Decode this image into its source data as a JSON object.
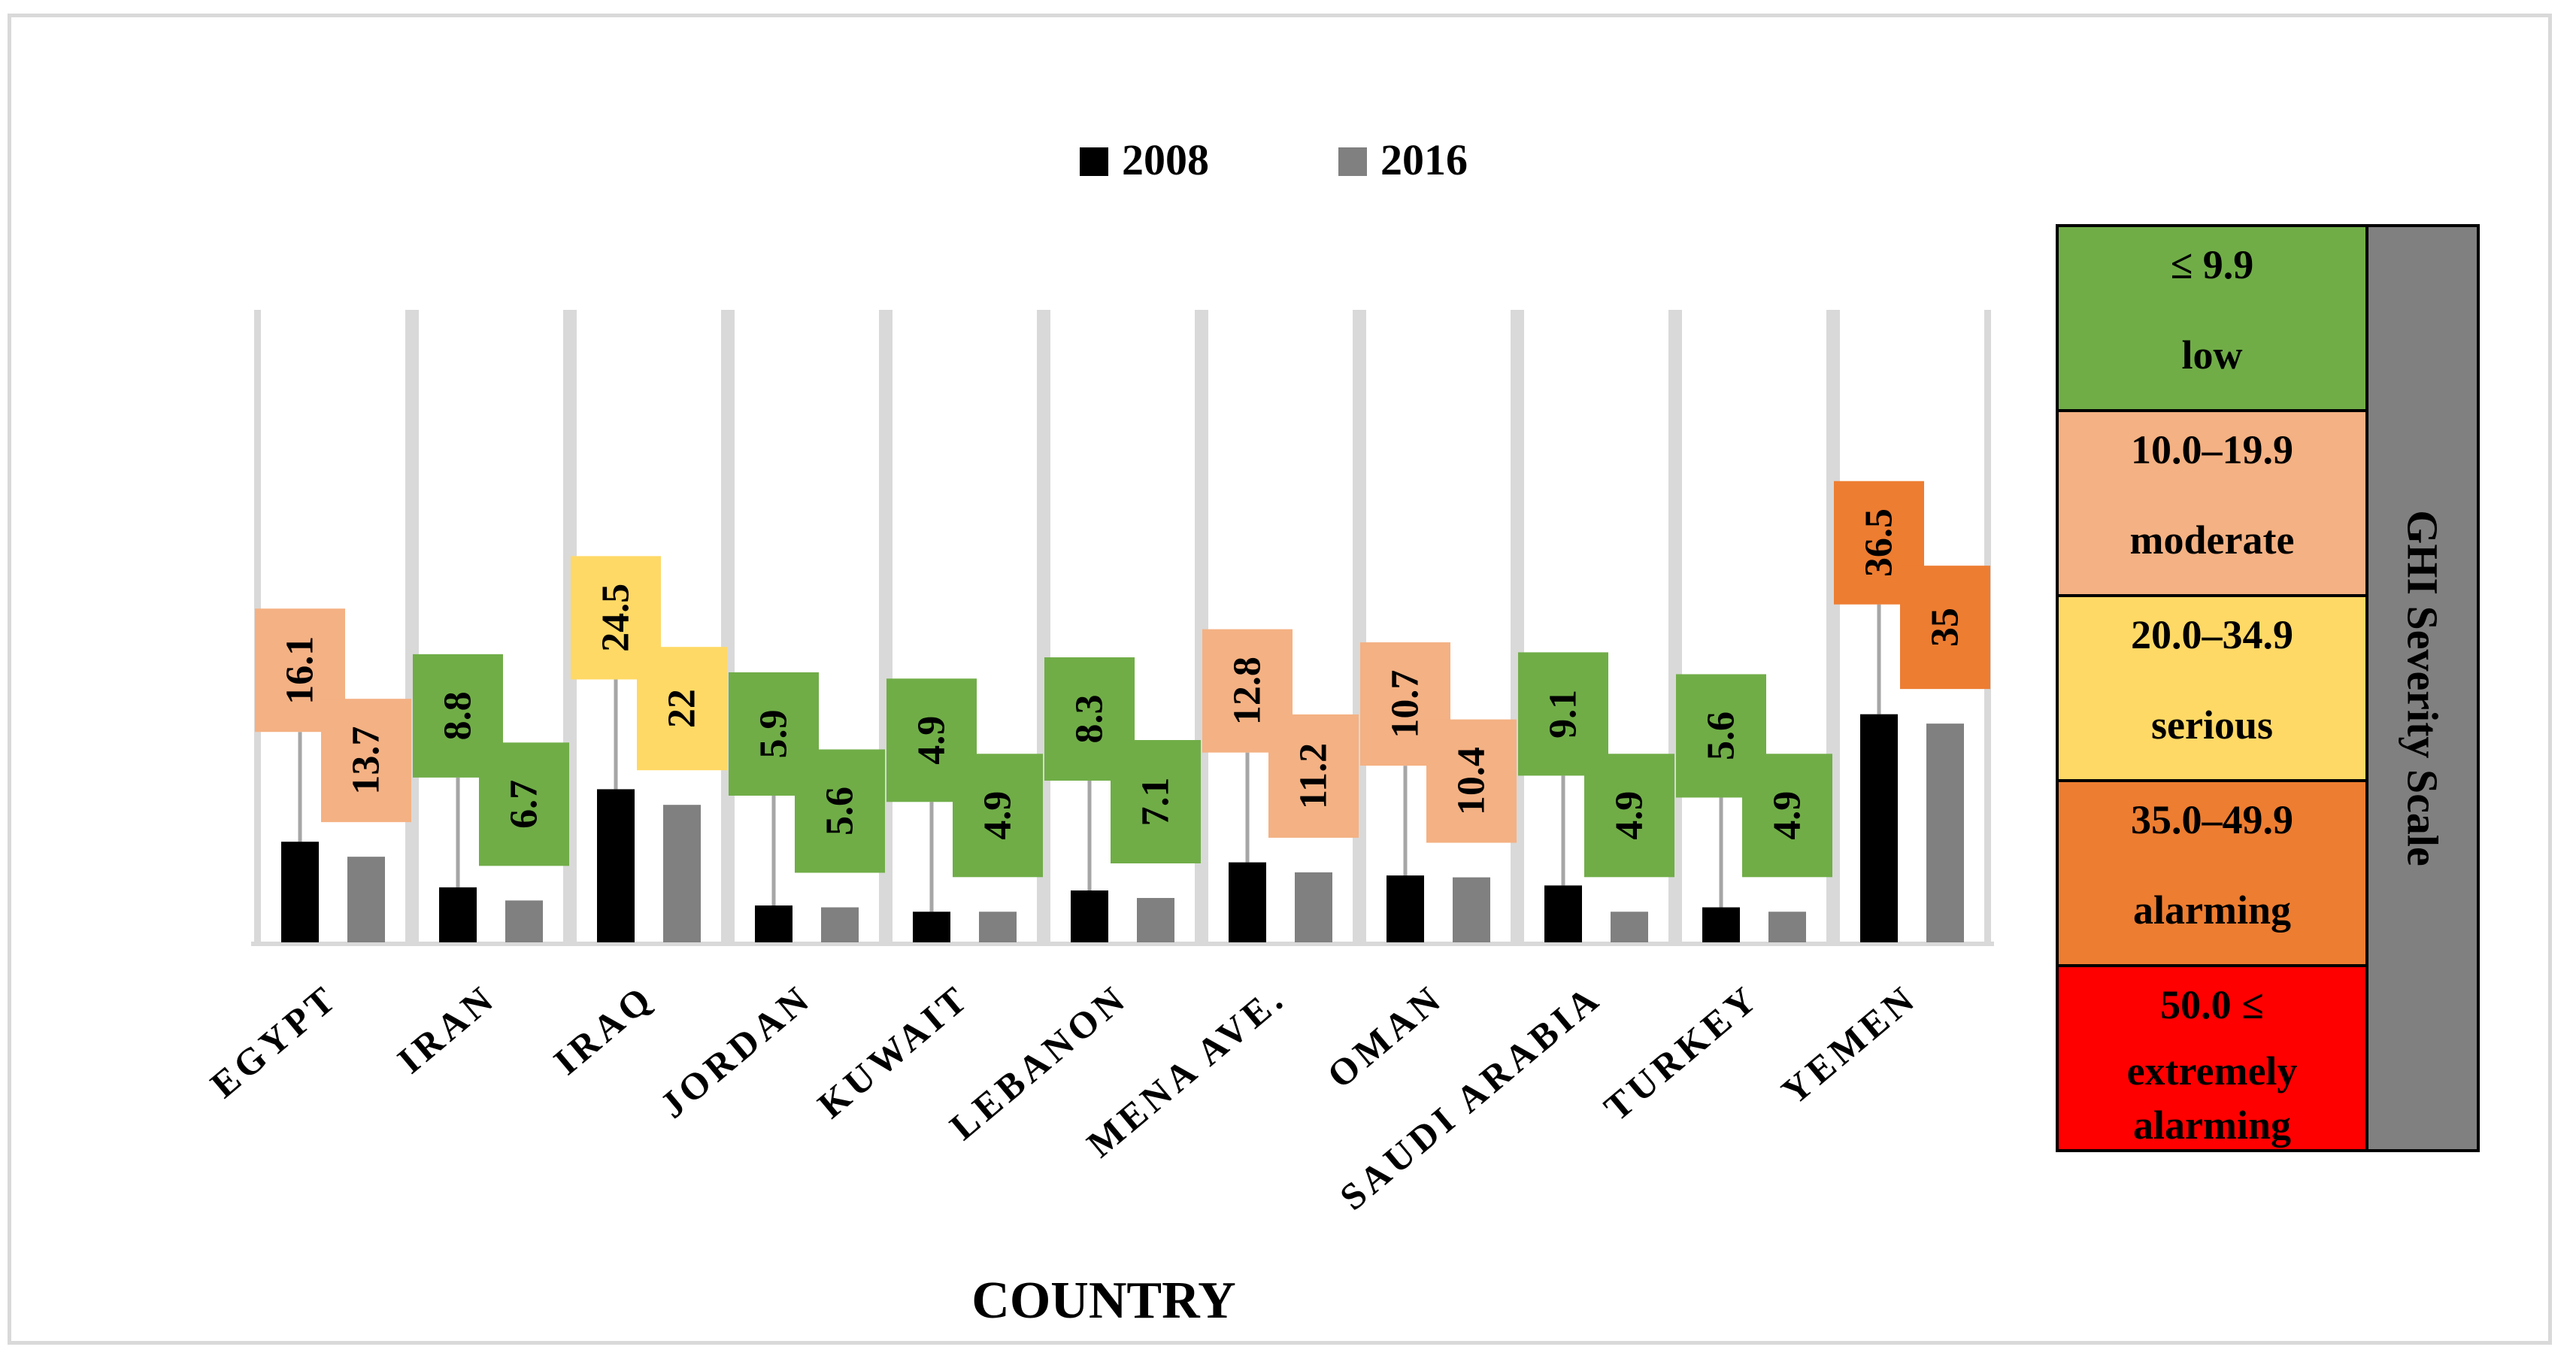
{
  "chart_data": {
    "type": "bar",
    "title": "",
    "xlabel": "COUNTRY",
    "ylabel": "",
    "ylim": [
      0,
      100
    ],
    "grid": false,
    "legend_position": "top-center",
    "categories": [
      "EGYPT",
      "IRAN",
      "IRAQ",
      "JORDAN",
      "KUWAIT",
      "LEBANON",
      "MENA AVE.",
      "OMAN",
      "SAUDI ARABIA",
      "TURKEY",
      "YEMEN"
    ],
    "series": [
      {
        "name": "2008",
        "color": "#000000",
        "values": [
          16.1,
          8.8,
          24.5,
          5.9,
          4.9,
          8.3,
          12.8,
          10.7,
          9.1,
          5.6,
          36.5
        ]
      },
      {
        "name": "2016",
        "color": "#808080",
        "values": [
          13.7,
          6.7,
          22,
          5.6,
          4.9,
          7.1,
          11.2,
          10.4,
          4.9,
          4.9,
          35
        ]
      }
    ],
    "data_labels": {
      "2008": [
        "16.1",
        "8.8",
        "24.5",
        "5.9",
        "4.9",
        "8.3",
        "12.8",
        "10.7",
        "9.1",
        "5.6",
        "36.5"
      ],
      "2016": [
        "13.7",
        "6.7",
        "22",
        "5.6",
        "4.9",
        "7.1",
        "11.2",
        "10.4",
        "4.9",
        "4.9",
        "35"
      ]
    }
  },
  "severity_scale": {
    "title": "GHI Severity Scale",
    "levels": [
      {
        "range": "≤ 9.9",
        "label": "low",
        "color": "#70ad47",
        "min": 0,
        "max": 9.9
      },
      {
        "range": "10.0–19.9",
        "label": "moderate",
        "color": "#f4b183",
        "min": 10.0,
        "max": 19.9
      },
      {
        "range": "20.0–34.9",
        "label": "serious",
        "color": "#ffd966",
        "min": 20.0,
        "max": 34.9
      },
      {
        "range": "35.0–49.9",
        "label": "alarming",
        "color": "#ed7d31",
        "min": 35.0,
        "max": 49.9
      },
      {
        "range": "50.0 ≤",
        "label": "extremely alarming",
        "color": "#ff0000",
        "min": 50.0,
        "max": 100
      }
    ],
    "title_bg": "#808080"
  }
}
